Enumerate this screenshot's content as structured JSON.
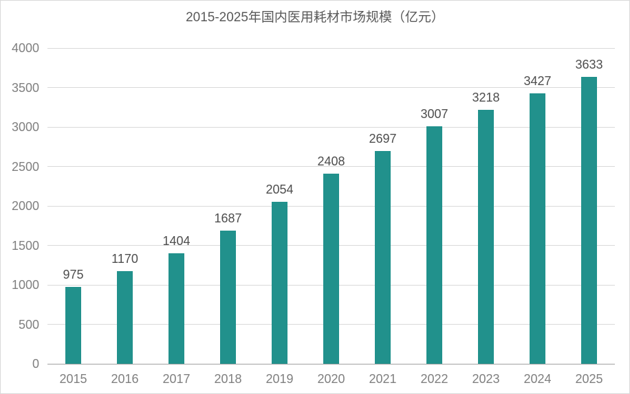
{
  "chart_data": {
    "type": "bar",
    "title": "2015-2025年国内医用耗材市场规模（亿元）",
    "categories": [
      "2015",
      "2016",
      "2017",
      "2018",
      "2019",
      "2020",
      "2021",
      "2022",
      "2023",
      "2024",
      "2025"
    ],
    "values": [
      975,
      1170,
      1404,
      1687,
      2054,
      2408,
      2697,
      3007,
      3218,
      3427,
      3633
    ],
    "xlabel": "",
    "ylabel": "",
    "ylim": [
      0,
      4000
    ],
    "yticks": [
      0,
      500,
      1000,
      1500,
      2000,
      2500,
      3000,
      3500,
      4000
    ],
    "grid": true,
    "legend": "none",
    "value_labels": true,
    "colors": {
      "bar": "#21918c",
      "gridline": "#d9d9d9",
      "axis_line": "#a0a0a0",
      "title_text": "#595959",
      "axis_label_text": "#7f7f7f",
      "value_label_text": "#4d4d4d",
      "background": "#ffffff",
      "frame_border": "#d9d9d9"
    }
  }
}
